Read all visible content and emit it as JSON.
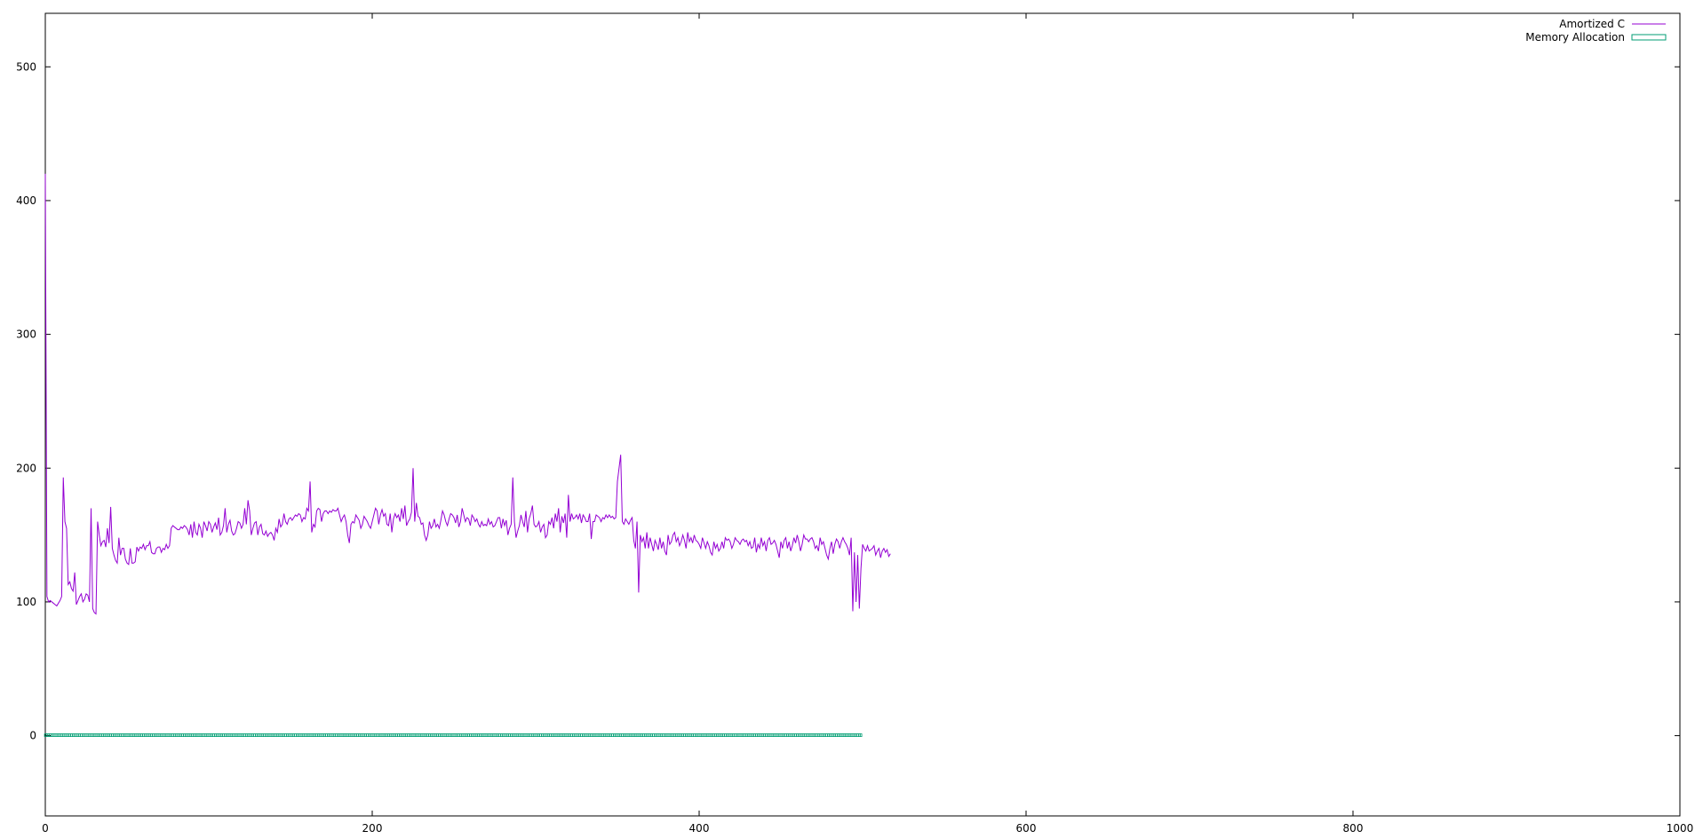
{
  "chart_data": {
    "type": "line",
    "xlim": [
      0,
      1000
    ],
    "ylim": [
      -60,
      540
    ],
    "x_ticks": [
      0,
      200,
      400,
      600,
      800,
      1000
    ],
    "y_ticks": [
      0,
      100,
      200,
      300,
      400,
      500
    ],
    "x_tick_labels": [
      "0",
      "200",
      "400",
      "600",
      "800",
      "1000"
    ],
    "y_tick_labels": [
      "0",
      "100",
      "200",
      "300",
      "400",
      "500"
    ],
    "grid": false,
    "legend_position": "top-right",
    "legend": [
      "Amortized C",
      "Memory Allocation"
    ],
    "colors": {
      "amortized": "#9400d3",
      "memory": "#009e73"
    },
    "series": [
      {
        "name": "Amortized C",
        "x_start": 0,
        "x_step": 1,
        "values": [
          420,
          104,
          100,
          101,
          100,
          99,
          98,
          97,
          99,
          101,
          104,
          193,
          160,
          155,
          113,
          115,
          110,
          108,
          122,
          98,
          101,
          104,
          106,
          100,
          102,
          106,
          105,
          100,
          170,
          95,
          92,
          91,
          160,
          150,
          142,
          145,
          146,
          141,
          155,
          144,
          171,
          140,
          135,
          131,
          129,
          148,
          135,
          140,
          140,
          132,
          129,
          128,
          140,
          129,
          129,
          130,
          141,
          138,
          141,
          140,
          143,
          139,
          142,
          142,
          145,
          137,
          136,
          136,
          140,
          141,
          141,
          137,
          140,
          139,
          143,
          140,
          142,
          155,
          157,
          156,
          155,
          154,
          154,
          156,
          155,
          157,
          156,
          154,
          150,
          158,
          148,
          160,
          152,
          150,
          158,
          155,
          148,
          160,
          157,
          153,
          160,
          158,
          152,
          156,
          159,
          154,
          163,
          150,
          152,
          157,
          170,
          152,
          158,
          161,
          153,
          150,
          151,
          155,
          160,
          159,
          155,
          158,
          170,
          158,
          176,
          168,
          150,
          155,
          159,
          160,
          150,
          156,
          158,
          151,
          150,
          153,
          149,
          151,
          152,
          150,
          146,
          155,
          152,
          162,
          156,
          158,
          166,
          160,
          158,
          162,
          163,
          161,
          163,
          165,
          164,
          166,
          165,
          160,
          163,
          162,
          170,
          168,
          190,
          152,
          158,
          156,
          168,
          170,
          169,
          160,
          166,
          168,
          168,
          166,
          168,
          167,
          169,
          168,
          168,
          170,
          165,
          160,
          163,
          165,
          160,
          150,
          144,
          158,
          160,
          159,
          165,
          163,
          161,
          155,
          158,
          164,
          162,
          160,
          157,
          155,
          160,
          165,
          170,
          168,
          158,
          165,
          169,
          164,
          166,
          158,
          157,
          166,
          152,
          162,
          166,
          163,
          165,
          160,
          170,
          162,
          172,
          157,
          160,
          162,
          167,
          200,
          160,
          174,
          164,
          163,
          158,
          159,
          150,
          146,
          150,
          160,
          155,
          157,
          162,
          156,
          158,
          155,
          161,
          168,
          165,
          160,
          157,
          162,
          166,
          165,
          163,
          159,
          165,
          156,
          160,
          170,
          165,
          160,
          163,
          162,
          157,
          165,
          163,
          160,
          162,
          158,
          156,
          160,
          157,
          158,
          157,
          162,
          158,
          160,
          156,
          157,
          160,
          163,
          163,
          155,
          162,
          157,
          161,
          150,
          155,
          158,
          193,
          160,
          148,
          153,
          157,
          165,
          160,
          156,
          168,
          152,
          162,
          166,
          172,
          158,
          156,
          157,
          160,
          152,
          156,
          158,
          148,
          150,
          160,
          158,
          163,
          155,
          166,
          160,
          170,
          152,
          164,
          159,
          166,
          148,
          180,
          160,
          166,
          162,
          163,
          165,
          162,
          166,
          159,
          165,
          163,
          160,
          160,
          166,
          147,
          160,
          160,
          165,
          164,
          163,
          160,
          163,
          162,
          165,
          163,
          165,
          163,
          164,
          162,
          163,
          190,
          200,
          210,
          160,
          158,
          162,
          160,
          158,
          161,
          163,
          146,
          140,
          160,
          107,
          150,
          145,
          148,
          140,
          152,
          140,
          148,
          143,
          138,
          146,
          143,
          139,
          148,
          140,
          145,
          138,
          135,
          150,
          143,
          145,
          150,
          152,
          145,
          148,
          142,
          145,
          150,
          146,
          140,
          152,
          145,
          148,
          144,
          150,
          146,
          145,
          143,
          140,
          148,
          144,
          140,
          145,
          142,
          137,
          135,
          145,
          140,
          143,
          138,
          140,
          145,
          140,
          148,
          146,
          147,
          145,
          140,
          143,
          148,
          146,
          145,
          143,
          146,
          147,
          145,
          146,
          142,
          145,
          140,
          141,
          148,
          137,
          143,
          140,
          148,
          142,
          145,
          138,
          146,
          148,
          143,
          144,
          146,
          143,
          138,
          133,
          145,
          140,
          146,
          148,
          140,
          145,
          138,
          142,
          148,
          144,
          150,
          145,
          138,
          143,
          150,
          147,
          147,
          145,
          147,
          148,
          145,
          140,
          142,
          138,
          148,
          143,
          145,
          140,
          135,
          132,
          140,
          145,
          136,
          143,
          147,
          145,
          140,
          145,
          148,
          145,
          143,
          140,
          135,
          148,
          93,
          137,
          100,
          135,
          95,
          125,
          143,
          140,
          138,
          142,
          138,
          139,
          140,
          142,
          135,
          138,
          140,
          133,
          138,
          140,
          137,
          139,
          134,
          136
        ]
      },
      {
        "name": "Memory Allocation",
        "x_start": 0,
        "x_step": 1,
        "count": 500,
        "constant_value": 0
      }
    ]
  }
}
